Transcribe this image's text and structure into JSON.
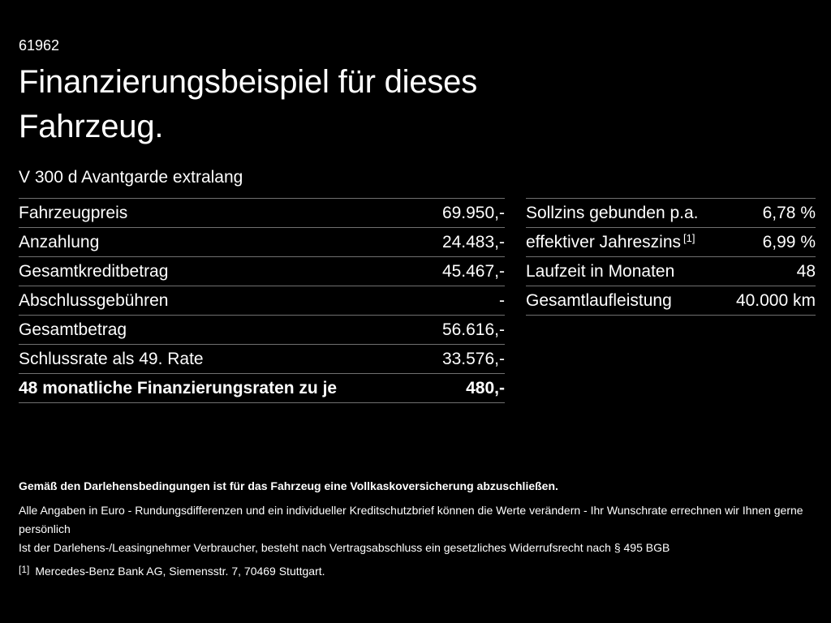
{
  "page": {
    "background_color": "#000000",
    "text_color": "#ffffff",
    "divider_color": "#707070"
  },
  "header": {
    "doc_number": "61962",
    "title_lines": [
      "Finanzierungsbeispiel für dieses",
      "Fahrzeug."
    ],
    "subtitle": "V 300 d Avantgarde extralang"
  },
  "finance_table": {
    "rows": [
      {
        "label": "Fahrzeugpreis",
        "value": "69.950,-"
      },
      {
        "label": "Anzahlung",
        "value": "24.483,-"
      },
      {
        "label": "Gesamtkreditbetrag",
        "value": "45.467,-"
      },
      {
        "label": "Abschlussgebühren",
        "value": "-"
      },
      {
        "label": "Gesamtbetrag",
        "value": "56.616,-"
      },
      {
        "label": "Schlussrate als 49. Rate",
        "value": "33.576,-"
      },
      {
        "label": "48 monatliche Finanzierungsraten zu je",
        "value": "480,-",
        "bold": true
      }
    ]
  },
  "conditions_table": {
    "rows": [
      {
        "label": "Sollzins gebunden p.a.",
        "value": "6,78 %"
      },
      {
        "label": "effektiver Jahreszins",
        "sup": "[1]",
        "value": "6,99 %"
      },
      {
        "label": "Laufzeit in Monaten",
        "value": "48"
      },
      {
        "label": "Gesamtlaufleistung",
        "value": "40.000 km"
      }
    ]
  },
  "footer": {
    "insurance_note": "Gemäß den Darlehensbedingungen ist für das Fahrzeug eine Vollkaskoversicherung abzuschließen.",
    "notes": [
      "Alle Angaben in Euro - Rundungsdifferenzen und ein individueller Kreditschutzbrief können die Werte verändern - Ihr Wunschrate errechnen wir Ihnen gerne persönlich",
      "Ist der Darlehens-/Leasingnehmer Verbraucher, besteht nach Vertragsabschluss ein gesetzliches Widerrufsrecht nach § 495 BGB"
    ],
    "footnote_marker": "[1]",
    "footnote_text": "Mercedes-Benz Bank AG, Siemensstr. 7, 70469 Stuttgart."
  }
}
